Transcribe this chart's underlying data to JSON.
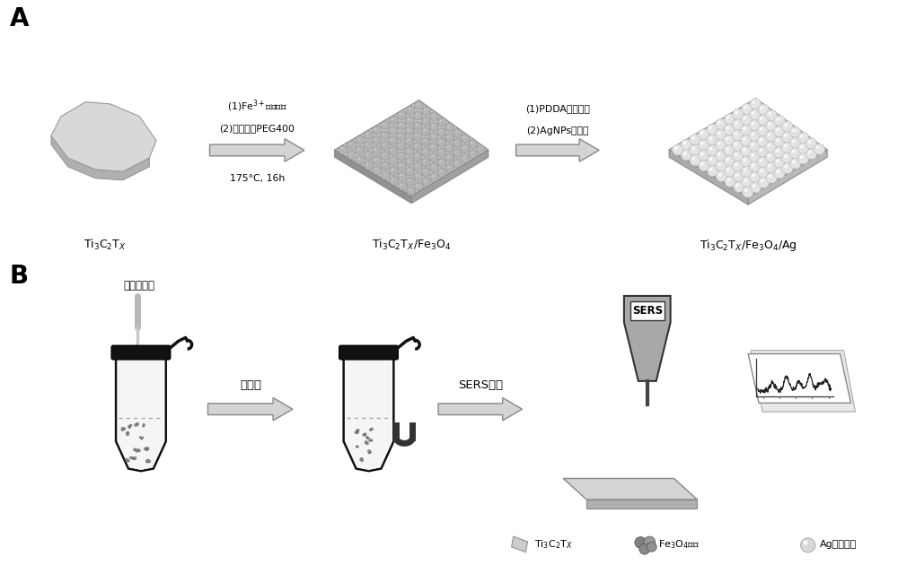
{
  "bg_color": "#ffffff",
  "panel_A_label": "A",
  "panel_B_label": "B",
  "label1": "Ti$_3$C$_2$T$_X$",
  "label2": "Ti$_3$C$_2$T$_X$/Fe$_3$O$_4$",
  "label3": "Ti$_3$C$_2$T$_X$/Fe$_3$O$_4$/Ag",
  "arrow1_text_line1": "(1)Fe$^{3+}$静电吸附",
  "arrow1_text_line2": "(2)乙酸钠，PEG400",
  "arrow1_text_line3": "175°C, 16h",
  "arrow2_text_line1": "(1)PDDA修饰改性",
  "arrow2_text_line2": "(2)AgNPs自组装",
  "step_B_text1": "加入待测液",
  "step_B_arrow1": "磁分离",
  "step_B_arrow2": "SERS检测",
  "sers_label": "SERS",
  "legend1": "Ti$_3$C$_2$T$_X$",
  "legend2": "Fe$_3$O$_4$团簇",
  "legend3": "Ag纳米颗粒"
}
